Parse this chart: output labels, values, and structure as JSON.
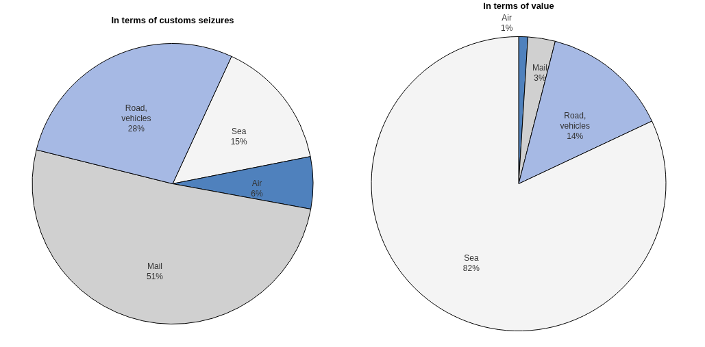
{
  "chart_data": [
    {
      "type": "pie",
      "title": "In terms of customs seizures",
      "categories": [
        "Sea",
        "Air",
        "Mail",
        "Road, vehicles"
      ],
      "values": [
        15,
        6,
        51,
        28
      ],
      "colors": [
        "#f4f4f4",
        "#4f81bd",
        "#d0d0d0",
        "#a6b9e4"
      ],
      "value_labels": [
        "15%",
        "6%",
        "51%",
        "28%"
      ]
    },
    {
      "type": "pie",
      "title": "In terms of value",
      "categories": [
        "Air",
        "Mail",
        "Road, vehicles",
        "Sea"
      ],
      "values": [
        1,
        3,
        14,
        82
      ],
      "colors": [
        "#4f81bd",
        "#d0d0d0",
        "#a6b9e4",
        "#f4f4f4"
      ],
      "value_labels": [
        "1%",
        "3%",
        "14%",
        "82%"
      ]
    }
  ]
}
